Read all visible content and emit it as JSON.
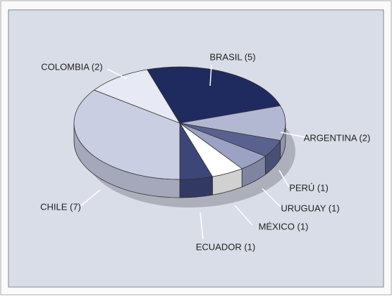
{
  "chart_data": {
    "type": "pie3d",
    "categories": [
      "BRASIL (5)",
      "ARGENTINA (2)",
      "PERÚ (1)",
      "URUGUAY (1)",
      "MÉXICO (1)",
      "ECUADOR (1)",
      "CHILE (7)",
      "COLOMBIA (2)"
    ],
    "values": [
      5,
      2,
      1,
      1,
      1,
      1,
      7,
      2
    ],
    "colors": [
      "#1f2a5f",
      "#b3b8d2",
      "#59628f",
      "#9ca2c4",
      "#ffffff",
      "#3d4679",
      "#c9cee3",
      "#e7eaf4"
    ]
  }
}
